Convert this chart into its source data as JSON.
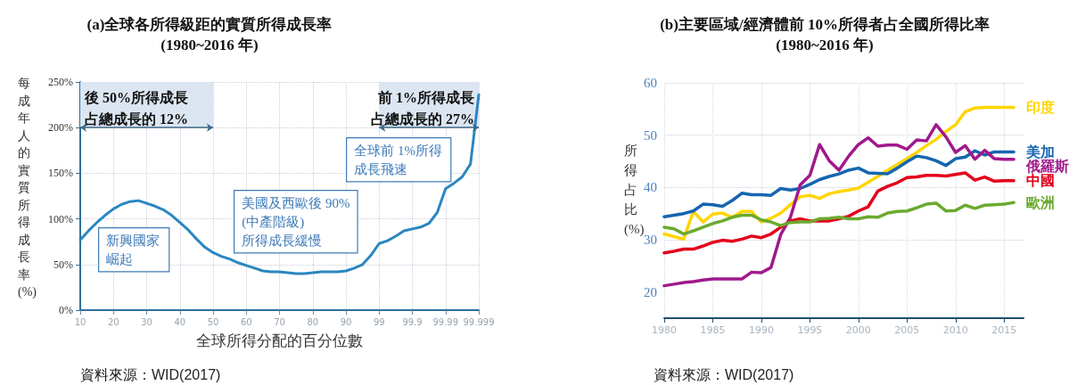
{
  "chart_data": [
    {
      "type": "line",
      "title": "(a)全球各所得級距的實質所得成長率",
      "subtitle": "(1980~2016 年)",
      "xlabel": "全球所得分配的百分位數",
      "ylabel": "每成年人的實質所得成長率(%)",
      "categories": [
        "10",
        null,
        null,
        null,
        "20",
        null,
        null,
        null,
        "30",
        null,
        null,
        null,
        "40",
        null,
        null,
        null,
        "50",
        null,
        null,
        null,
        "60",
        null,
        null,
        null,
        "70",
        null,
        null,
        null,
        "80",
        null,
        null,
        null,
        "90",
        null,
        null,
        null,
        "99",
        null,
        null,
        null,
        "99.9",
        null,
        null,
        null,
        "99.99",
        null,
        null,
        null,
        "99.999"
      ],
      "series": [
        {
          "color": "#2a86c0",
          "values": [
            77,
            87,
            96,
            104,
            111,
            116,
            119,
            120,
            117,
            114,
            110,
            104,
            96,
            88,
            78,
            69,
            63,
            59,
            56,
            52,
            49,
            46,
            43,
            42,
            42,
            41,
            40,
            40,
            41,
            42,
            42,
            42,
            43,
            46,
            50,
            60,
            73,
            76,
            81,
            87,
            89,
            91,
            95,
            107,
            133,
            139,
            146,
            160,
            236
          ]
        }
      ],
      "ylim": [
        0,
        250
      ],
      "yticks": [
        {
          "value": 0,
          "label": "0%"
        },
        {
          "value": 50,
          "label": "50%"
        },
        {
          "value": 100,
          "label": "100%"
        },
        {
          "value": 150,
          "label": "150%"
        },
        {
          "value": 200,
          "label": "200%"
        },
        {
          "value": 250,
          "label": "250%"
        }
      ],
      "bands": [
        {
          "axis": "x",
          "from": "10",
          "to": "50",
          "label": "後 50%所得成長占總成長的 12%",
          "color": "#dce6f2"
        },
        {
          "axis": "x",
          "from": "99",
          "to": "99.999",
          "label": "前 1%所得成長占總成長的 27%",
          "color": "#dce6f2"
        }
      ],
      "annotations": [
        "新興國家崛起",
        "美國及西歐後 90%\n(中產階級)\n所得成長緩慢",
        "全球前 1%所得成長飛速",
        "資料來源：WID(2017)"
      ],
      "grid": true,
      "legend": false,
      "marker": "none",
      "line_style": "solid"
    },
    {
      "type": "line",
      "title": "(b)主要區域/經濟體前 10%所得者占全國所得比率",
      "subtitle": "(1980~2016 年)",
      "ylabel": "所得占比(%)",
      "x": [
        1980,
        1981,
        1982,
        1983,
        1984,
        1985,
        1986,
        1987,
        1988,
        1989,
        1990,
        1991,
        1992,
        1993,
        1994,
        1995,
        1996,
        1997,
        1998,
        1999,
        2000,
        2001,
        2002,
        2003,
        2004,
        2005,
        2006,
        2007,
        2008,
        2009,
        2010,
        2011,
        2012,
        2013,
        2014,
        2015,
        2016
      ],
      "series": [
        {
          "name": "印度",
          "color": "#ffd500",
          "values": [
            31.1,
            30.6,
            30.1,
            35.4,
            33.4,
            34.9,
            35.1,
            34.3,
            35.4,
            35.4,
            33.4,
            34.1,
            35.1,
            36.7,
            38.2,
            38.5,
            37.9,
            38.8,
            39.2,
            39.5,
            39.9,
            41,
            42.1,
            43.3,
            44.4,
            45.5,
            46.7,
            48,
            49.2,
            50.7,
            52,
            54.5,
            55.2,
            55.3,
            55.3,
            55.3,
            55.3
          ]
        },
        {
          "name": "美加",
          "color": "#1565b0",
          "values": [
            34.4,
            34.7,
            35,
            35.5,
            36.8,
            36.7,
            36.4,
            37.5,
            38.9,
            38.6,
            38.6,
            38.5,
            39.8,
            39.5,
            39.8,
            40.6,
            41.5,
            42.1,
            42.6,
            43.3,
            43.7,
            42.8,
            42.7,
            42.6,
            43.7,
            44.9,
            46,
            45.7,
            45.1,
            44.2,
            45.5,
            45.8,
            47,
            46.2,
            46.8,
            46.8,
            46.8
          ]
        },
        {
          "name": "俄羅斯",
          "color": "#a0198c",
          "values": [
            21.2,
            21.5,
            21.8,
            22,
            22.3,
            22.5,
            22.5,
            22.5,
            22.5,
            23.8,
            23.7,
            24.7,
            31,
            34.3,
            40.5,
            42.3,
            48.2,
            45.1,
            43.3,
            46,
            48.2,
            49.5,
            47.9,
            48.1,
            48.1,
            47.3,
            49.1,
            48.9,
            52,
            49.7,
            46.7,
            48,
            45.4,
            47.1,
            45.5,
            45.4,
            45.4
          ]
        },
        {
          "name": "中國",
          "color": "#e3001b",
          "values": [
            27.5,
            27.8,
            28.2,
            28.2,
            28.8,
            29.5,
            29.9,
            29.7,
            30.1,
            30.7,
            30.4,
            31.1,
            32.4,
            33.6,
            34,
            33.6,
            33.6,
            33.6,
            34,
            34.5,
            35.5,
            36.3,
            39.3,
            40.2,
            40.9,
            41.9,
            42,
            42.3,
            42.3,
            42.2,
            42.5,
            42.8,
            41.4,
            42,
            41.2,
            41.3,
            41.3
          ]
        },
        {
          "name": "歐洲",
          "color": "#6aaa2e",
          "values": [
            32.4,
            32.1,
            31.1,
            31.7,
            32.4,
            33.1,
            33.6,
            34.3,
            34.7,
            34.7,
            33.8,
            33.4,
            32.7,
            33.3,
            33.4,
            33.4,
            34,
            34.1,
            34.3,
            34,
            34,
            34.4,
            34.3,
            35.1,
            35.4,
            35.5,
            36.1,
            36.8,
            37,
            35.5,
            35.6,
            36.6,
            36,
            36.6,
            36.7,
            36.8,
            37.1
          ]
        }
      ],
      "xlim": [
        1980,
        2017
      ],
      "xticks": [
        1980,
        1985,
        1990,
        1995,
        2000,
        2005,
        2010,
        2015
      ],
      "ylim": [
        15,
        60
      ],
      "yticks": [
        20,
        30,
        40,
        50,
        60
      ],
      "annotations": [
        "資料來源：WID(2017)"
      ],
      "grid": true,
      "legend": false,
      "marker": "none",
      "line_style": "solid"
    }
  ]
}
